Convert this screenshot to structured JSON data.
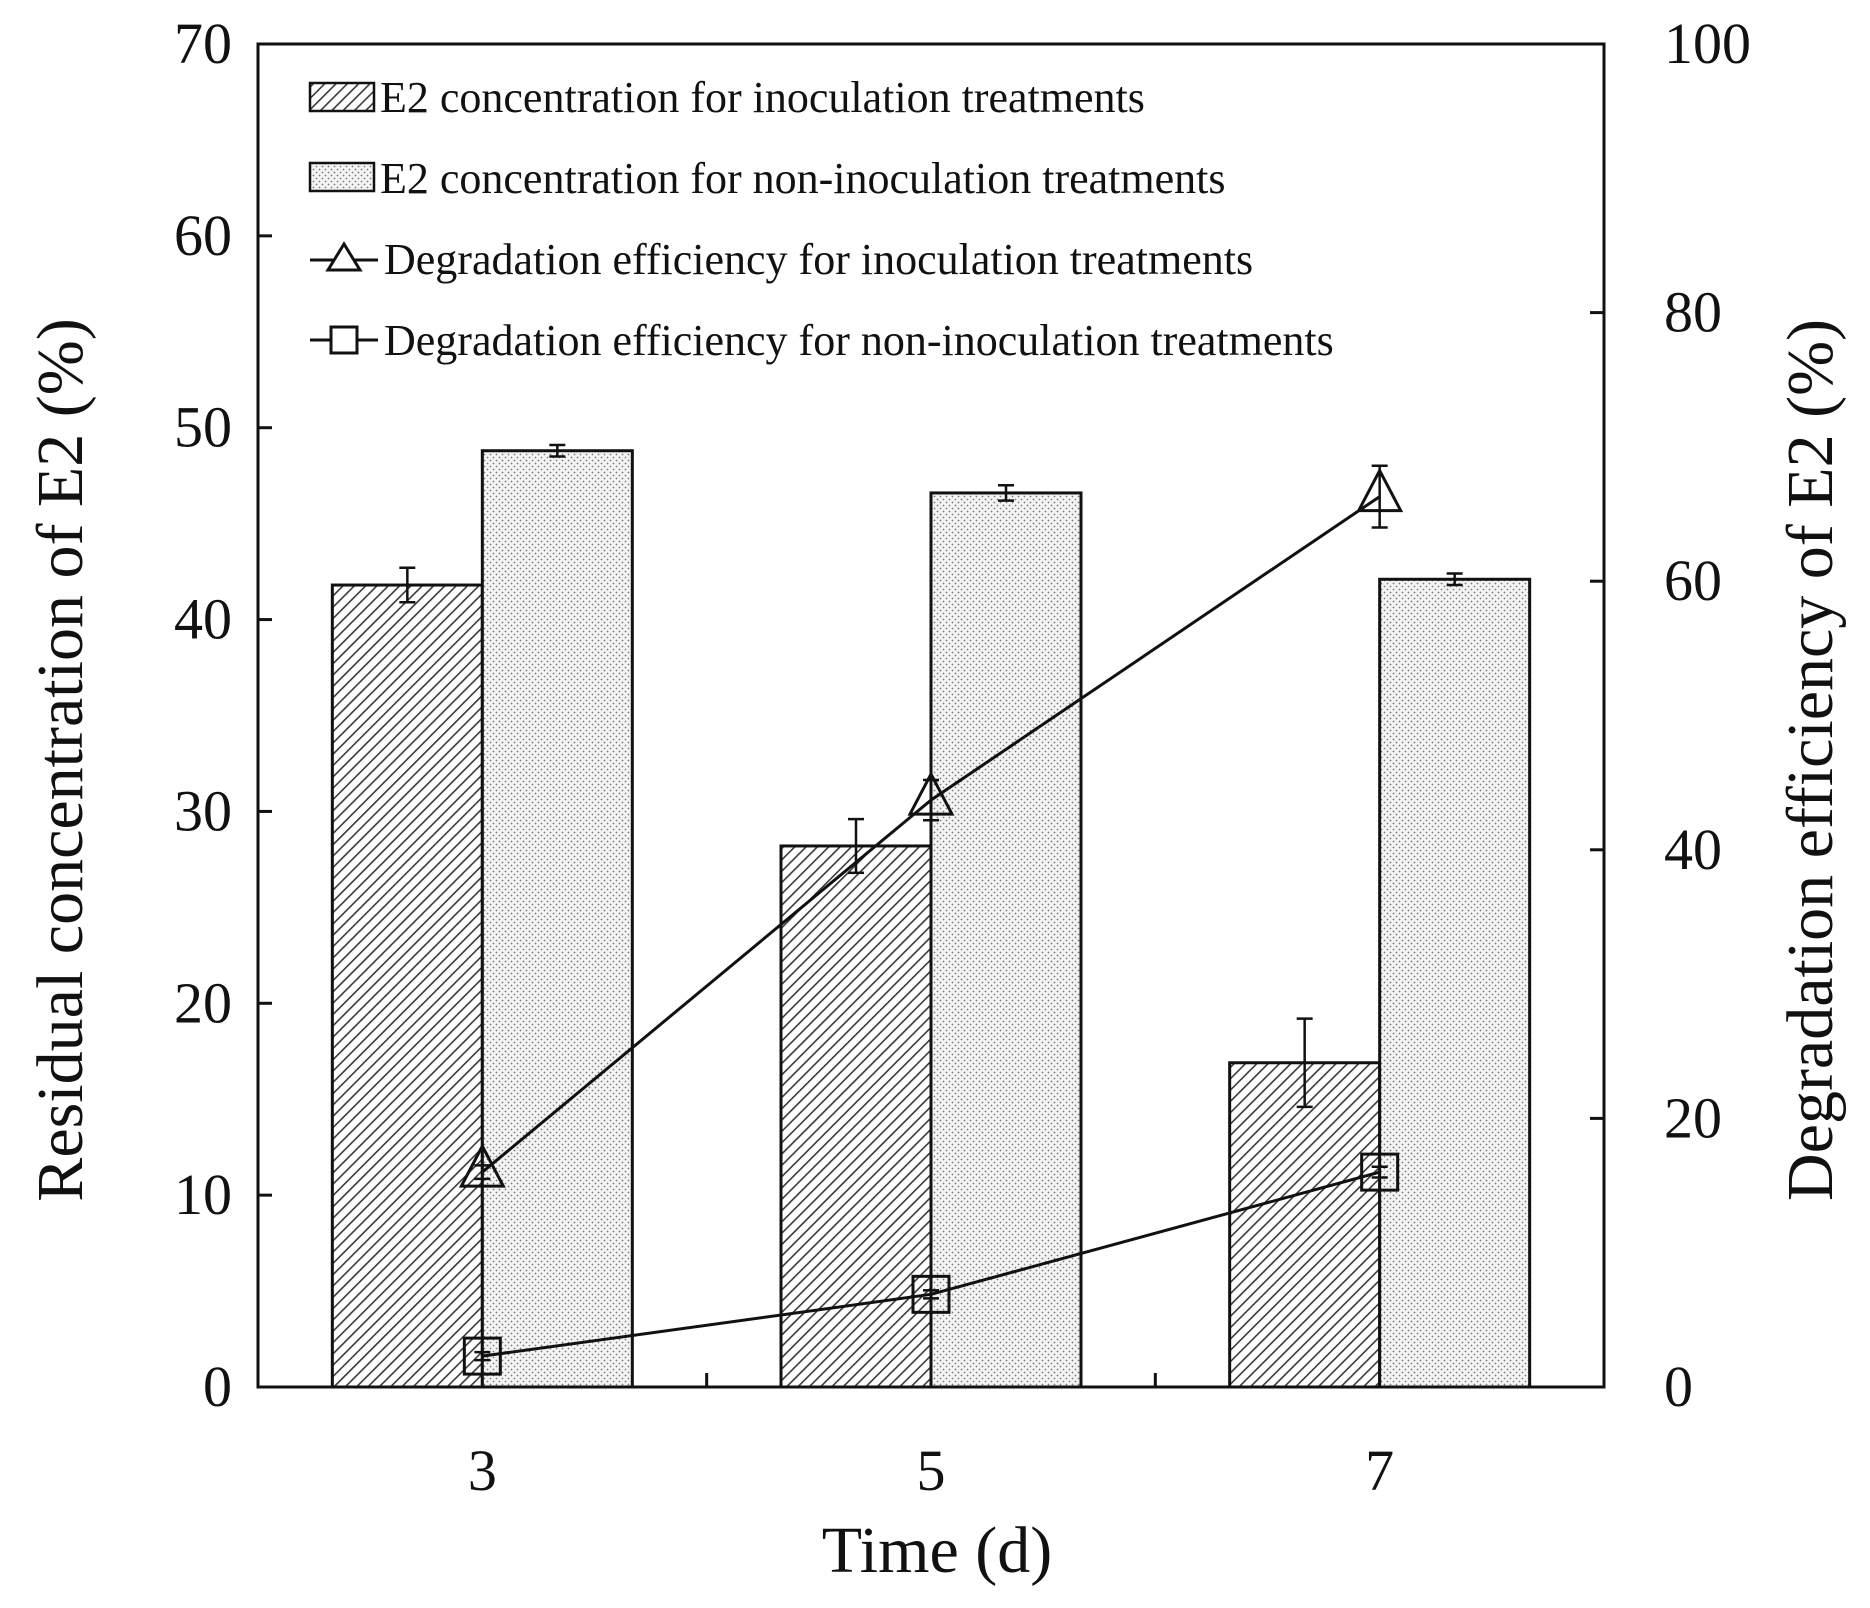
{
  "chart_data": {
    "type": "bar",
    "xlabel": "Time (d)",
    "ylabel": "Residual concentration of E2 (%)",
    "y2label": "Degradation efficiency of E2 (%)",
    "categories": [
      "3",
      "5",
      "7"
    ],
    "ylim": [
      0,
      70
    ],
    "y2lim": [
      0,
      100
    ],
    "yticks": [
      "0",
      "10",
      "20",
      "30",
      "40",
      "50",
      "60",
      "70"
    ],
    "y2ticks": [
      "0",
      "20",
      "40",
      "60",
      "80",
      "100"
    ],
    "grid": false,
    "legend_position": "top-left",
    "series": [
      {
        "name": "E2 concentration for inoculation treatments",
        "kind": "bar",
        "axis": "left",
        "fill": "hatched",
        "values": [
          41.8,
          28.2,
          16.9
        ],
        "errors": [
          0.9,
          1.4,
          2.3
        ]
      },
      {
        "name": "E2 concentration for non-inoculation treatments",
        "kind": "bar",
        "axis": "left",
        "fill": "dotted",
        "values": [
          48.8,
          46.6,
          42.1
        ],
        "errors": [
          0.3,
          0.4,
          0.3
        ]
      },
      {
        "name": "Degradation efficiency for inoculation treatments",
        "kind": "line",
        "axis": "right",
        "marker": "triangle",
        "values": [
          16.0,
          43.7,
          66.3
        ],
        "errors": [
          0.5,
          1.5,
          2.3
        ]
      },
      {
        "name": "Degradation efficiency for non-inoculation treatments",
        "kind": "line",
        "axis": "right",
        "marker": "square",
        "values": [
          2.3,
          6.9,
          16.0
        ],
        "errors": [
          0.3,
          0.3,
          0.4
        ]
      }
    ]
  },
  "colors": {
    "axis": "#111111",
    "bar_outline": "#111111",
    "hatch": "#333333",
    "dots": "#555555",
    "line": "#111111"
  }
}
